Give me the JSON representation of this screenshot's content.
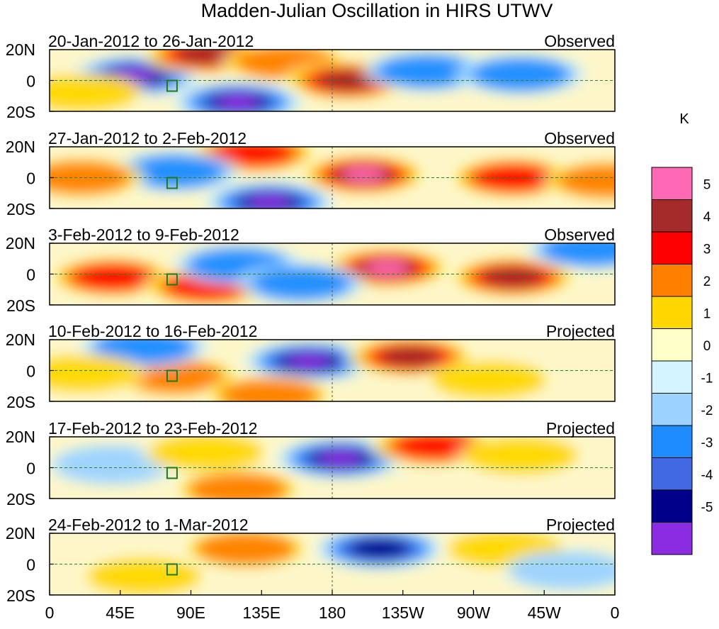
{
  "chart_data": {
    "type": "heatmap",
    "title": "Madden-Julian Oscillation in HIRS UTWV",
    "x_ticks": [
      "0",
      "45E",
      "90E",
      "135E",
      "180",
      "135W",
      "90W",
      "45W",
      "0"
    ],
    "y_ticks": [
      "20N",
      "0",
      "20S"
    ],
    "xlim": [
      0,
      360
    ],
    "ylim": [
      -20,
      20
    ],
    "colorbar": {
      "unit": "K",
      "labels": [
        "5",
        "4",
        "3",
        "2",
        "1",
        "0",
        "-1",
        "-2",
        "-3",
        "-4",
        "-5"
      ],
      "colors": [
        "#ff69b4",
        "#a52a2a",
        "#ff0000",
        "#ff7f00",
        "#ffd700",
        "#ffffc8",
        "#d2f5ff",
        "#9bd2ff",
        "#1e8cff",
        "#4169e1",
        "#00008b",
        "#8b2be2"
      ]
    },
    "panels": [
      {
        "period": "20-Jan-2012 to 26-Jan-2012",
        "status": "Observed",
        "anomalies": [
          {
            "lon": 55,
            "lat": 3,
            "value": -5
          },
          {
            "lon": 120,
            "lat": -14,
            "value": -6
          },
          {
            "lon": 100,
            "lat": 17,
            "value": 4
          },
          {
            "lon": 150,
            "lat": 12,
            "value": 2
          },
          {
            "lon": 190,
            "lat": 0,
            "value": 4
          },
          {
            "lon": 240,
            "lat": 6,
            "value": -2
          },
          {
            "lon": 300,
            "lat": 4,
            "value": -2
          },
          {
            "lon": 20,
            "lat": -8,
            "value": 1
          }
        ]
      },
      {
        "period": "27-Jan-2012 to 2-Feb-2012",
        "status": "Observed",
        "anomalies": [
          {
            "lon": 200,
            "lat": 2,
            "value": 5
          },
          {
            "lon": 130,
            "lat": 16,
            "value": 3
          },
          {
            "lon": 140,
            "lat": -16,
            "value": -5
          },
          {
            "lon": 80,
            "lat": 4,
            "value": -2
          },
          {
            "lon": 295,
            "lat": 0,
            "value": 3
          },
          {
            "lon": 20,
            "lat": 0,
            "value": 2
          },
          {
            "lon": 355,
            "lat": -2,
            "value": 2
          }
        ]
      },
      {
        "period": "3-Feb-2012 to 9-Feb-2012",
        "status": "Observed",
        "anomalies": [
          {
            "lon": 215,
            "lat": 4,
            "value": 5
          },
          {
            "lon": 40,
            "lat": -2,
            "value": 3
          },
          {
            "lon": 100,
            "lat": -8,
            "value": 3
          },
          {
            "lon": 295,
            "lat": -2,
            "value": 4
          },
          {
            "lon": 120,
            "lat": 6,
            "value": -2
          },
          {
            "lon": 160,
            "lat": -6,
            "value": -2
          },
          {
            "lon": 345,
            "lat": 16,
            "value": -2
          }
        ]
      },
      {
        "period": "10-Feb-2012 to 16-Feb-2012",
        "status": "Projected",
        "anomalies": [
          {
            "lon": 165,
            "lat": 6,
            "value": -5
          },
          {
            "lon": 230,
            "lat": 9,
            "value": 4
          },
          {
            "lon": 80,
            "lat": -4,
            "value": 2
          },
          {
            "lon": 140,
            "lat": -16,
            "value": 2
          },
          {
            "lon": 60,
            "lat": 15,
            "value": -2
          },
          {
            "lon": 280,
            "lat": -6,
            "value": 1
          },
          {
            "lon": 20,
            "lat": -2,
            "value": 1
          }
        ]
      },
      {
        "period": "17-Feb-2012 to 23-Feb-2012",
        "status": "Projected",
        "anomalies": [
          {
            "lon": 185,
            "lat": 6,
            "value": -5
          },
          {
            "lon": 245,
            "lat": 14,
            "value": 3
          },
          {
            "lon": 120,
            "lat": -14,
            "value": 2
          },
          {
            "lon": 300,
            "lat": 8,
            "value": 1
          },
          {
            "lon": 40,
            "lat": 2,
            "value": -1
          },
          {
            "lon": 100,
            "lat": 10,
            "value": 1
          }
        ]
      },
      {
        "period": "24-Feb-2012 to 1-Mar-2012",
        "status": "Projected",
        "anomalies": [
          {
            "lon": 210,
            "lat": 10,
            "value": -4
          },
          {
            "lon": 125,
            "lat": 10,
            "value": 2
          },
          {
            "lon": 290,
            "lat": 10,
            "value": 1
          },
          {
            "lon": 60,
            "lat": -8,
            "value": 1
          },
          {
            "lon": 330,
            "lat": -4,
            "value": -1
          }
        ]
      }
    ]
  }
}
